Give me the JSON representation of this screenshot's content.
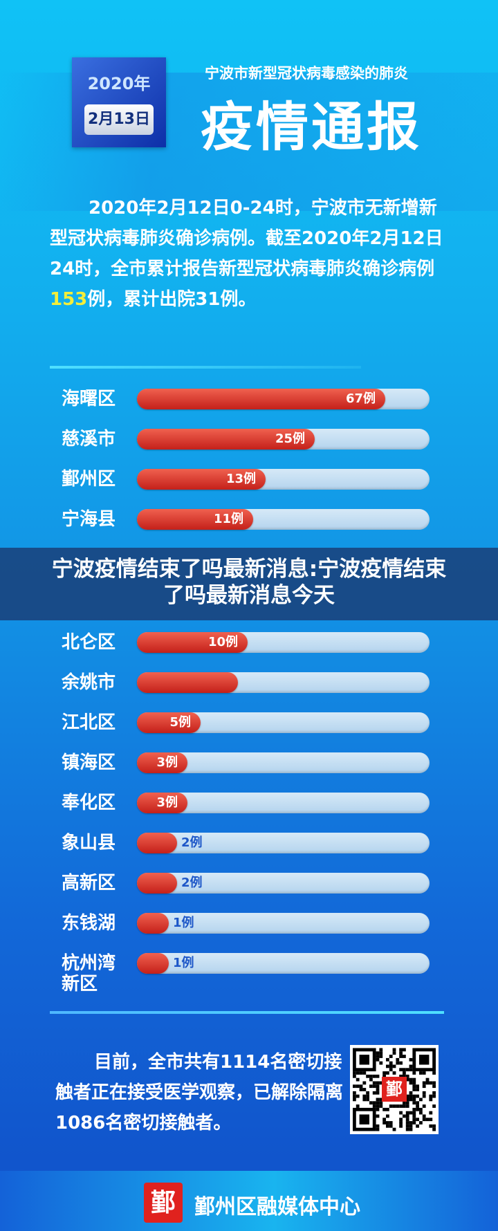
{
  "header": {
    "year": "2020年",
    "date": "2月13日",
    "subtitle": "宁波市新型冠状病毒感染的肺炎",
    "title": "疫情通报"
  },
  "summary": {
    "before": "2020年2月12日0-24时，宁波市无新增新型冠状病毒肺炎确诊病例。截至2020年2月12日24时，全市累计报告新型冠状病毒肺炎确诊病例",
    "highlight": "153",
    "after": "例，累计出院31例。"
  },
  "districts": [
    {
      "name": "海曙区",
      "value": 67,
      "label": "67例"
    },
    {
      "name": "慈溪市",
      "value": 25,
      "label": "25例"
    },
    {
      "name": "鄞州区",
      "value": 13,
      "label": "13例"
    },
    {
      "name": "宁海县",
      "value": 11,
      "label": "11例"
    },
    {
      "name": "北仑区",
      "value": 10,
      "label": "10例"
    },
    {
      "name": "余姚市",
      "value": null,
      "label": null
    },
    {
      "name": "江北区",
      "value": 5,
      "label": "5例"
    },
    {
      "name": "镇海区",
      "value": 3,
      "label": "3例"
    },
    {
      "name": "奉化区",
      "value": 3,
      "label": "3例"
    },
    {
      "name": "象山县",
      "value": 2,
      "label": "2例"
    },
    {
      "name": "高新区",
      "value": 2,
      "label": "2例"
    },
    {
      "name": "东钱湖",
      "value": 1,
      "label": "1例"
    },
    {
      "name": "杭州湾新区",
      "value": 1,
      "label": "1例"
    }
  ],
  "overlay": {
    "headline": "宁波疫情结束了吗最新消息:宁波疫情结束了吗最新消息今天"
  },
  "contacts": {
    "text": "目前，全市共有1114名密切接触者正在接受医学观察，已解除隔离1086名密切接触者。"
  },
  "qr": {
    "logo": "鄞"
  },
  "footer": {
    "logo": "鄞",
    "org": "鄞州区融媒体中心"
  },
  "colors": {
    "bar_fill": "#d8322a",
    "highlight": "#f4ee3a"
  }
}
